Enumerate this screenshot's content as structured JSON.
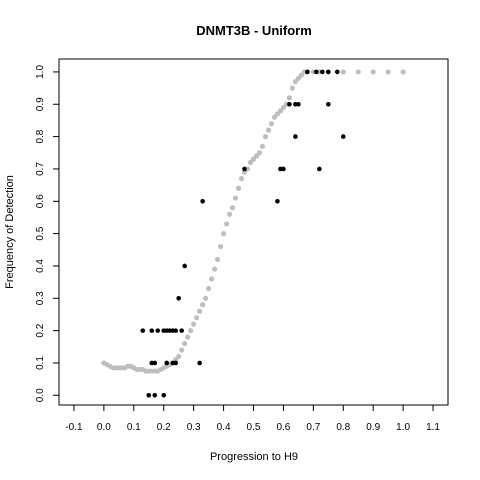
{
  "chart_data": {
    "type": "scatter",
    "title": "DNMT3B - Uniform",
    "xlabel": "Progression to H9",
    "ylabel": "Frequency of Detection",
    "xlim": [
      -0.15,
      1.15
    ],
    "ylim": [
      -0.03,
      1.04
    ],
    "xticks": [
      "-0.1",
      "0.0",
      "0.1",
      "0.2",
      "0.3",
      "0.4",
      "0.5",
      "0.6",
      "0.7",
      "0.8",
      "0.9",
      "1.0",
      "1.1"
    ],
    "yticks": [
      "0.0",
      "0.1",
      "0.2",
      "0.3",
      "0.4",
      "0.5",
      "0.6",
      "0.7",
      "0.8",
      "0.9",
      "1.0"
    ],
    "grid": false,
    "legend": "none",
    "colors": {
      "fitted": "#bebebe",
      "observed": "#000000"
    },
    "series": [
      {
        "color": "#bebebe",
        "x": [
          0.0,
          0.01,
          0.02,
          0.03,
          0.04,
          0.05,
          0.06,
          0.07,
          0.08,
          0.09,
          0.1,
          0.11,
          0.12,
          0.13,
          0.14,
          0.15,
          0.16,
          0.17,
          0.18,
          0.19,
          0.2,
          0.21,
          0.22,
          0.23,
          0.24,
          0.25,
          0.26,
          0.27,
          0.28,
          0.29,
          0.3,
          0.31,
          0.32,
          0.33,
          0.34,
          0.35,
          0.36,
          0.37,
          0.38,
          0.39,
          0.4,
          0.41,
          0.42,
          0.43,
          0.44,
          0.45,
          0.46,
          0.47,
          0.48,
          0.49,
          0.5,
          0.51,
          0.52,
          0.53,
          0.54,
          0.55,
          0.56,
          0.57,
          0.58,
          0.59,
          0.6,
          0.61,
          0.62,
          0.63,
          0.64,
          0.65,
          0.66,
          0.67,
          0.68,
          0.7,
          0.72,
          0.75,
          0.8,
          0.85,
          0.9,
          0.95,
          1.0
        ],
        "y": [
          0.1,
          0.095,
          0.09,
          0.085,
          0.085,
          0.085,
          0.085,
          0.085,
          0.09,
          0.09,
          0.085,
          0.08,
          0.08,
          0.08,
          0.075,
          0.075,
          0.075,
          0.075,
          0.075,
          0.08,
          0.085,
          0.09,
          0.095,
          0.1,
          0.11,
          0.12,
          0.14,
          0.16,
          0.18,
          0.2,
          0.22,
          0.24,
          0.26,
          0.28,
          0.3,
          0.33,
          0.36,
          0.39,
          0.42,
          0.46,
          0.5,
          0.53,
          0.56,
          0.58,
          0.61,
          0.64,
          0.67,
          0.69,
          0.7,
          0.72,
          0.73,
          0.74,
          0.75,
          0.77,
          0.8,
          0.82,
          0.84,
          0.86,
          0.87,
          0.88,
          0.89,
          0.9,
          0.92,
          0.95,
          0.97,
          0.98,
          0.99,
          1.0,
          1.0,
          1.0,
          1.0,
          1.0,
          1.0,
          1.0,
          1.0,
          1.0,
          1.0
        ]
      },
      {
        "color": "#000000",
        "x": [
          0.15,
          0.17,
          0.2,
          0.13,
          0.16,
          0.18,
          0.2,
          0.21,
          0.22,
          0.23,
          0.24,
          0.26,
          0.16,
          0.17,
          0.21,
          0.23,
          0.24,
          0.32,
          0.25,
          0.27,
          0.33,
          0.47,
          0.58,
          0.59,
          0.6,
          0.72,
          0.64,
          0.8,
          0.62,
          0.64,
          0.65,
          0.75,
          0.68,
          0.71,
          0.73,
          0.75,
          0.78
        ],
        "y": [
          0.0,
          0.0,
          0.0,
          0.2,
          0.2,
          0.2,
          0.2,
          0.2,
          0.2,
          0.2,
          0.2,
          0.2,
          0.1,
          0.1,
          0.1,
          0.1,
          0.1,
          0.1,
          0.3,
          0.4,
          0.6,
          0.7,
          0.6,
          0.7,
          0.7,
          0.7,
          0.8,
          0.8,
          0.9,
          0.9,
          0.9,
          0.9,
          1.0,
          1.0,
          1.0,
          1.0,
          1.0
        ]
      }
    ]
  }
}
